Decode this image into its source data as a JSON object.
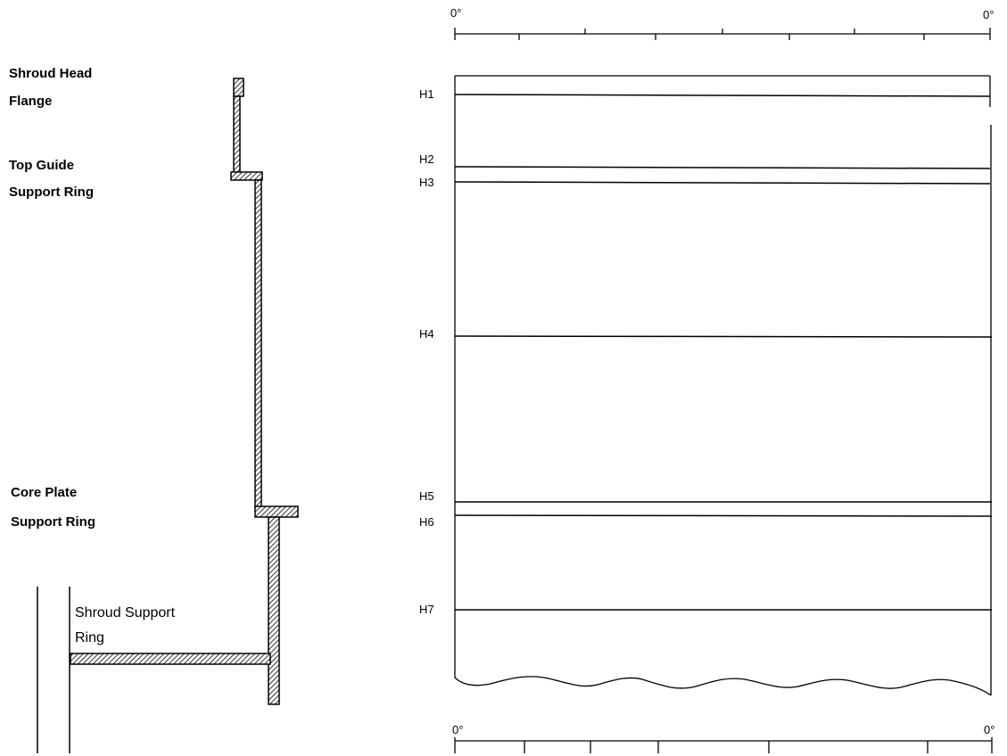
{
  "components": {
    "shroud_head_flange": [
      "Shroud Head",
      "Flange"
    ],
    "top_guide_support_ring": [
      "Top Guide",
      "Support Ring"
    ],
    "core_plate_support_ring": [
      "Core Plate",
      "Support Ring"
    ],
    "shroud_support_ring": [
      "Shroud Support",
      "Ring"
    ]
  },
  "welds": [
    "H1",
    "H2",
    "H3",
    "H4",
    "H5",
    "H6",
    "H7"
  ],
  "azimuth": {
    "top": {
      "start": "0°",
      "end": "0°"
    },
    "bottom": {
      "start": "0°",
      "end": "0°"
    }
  },
  "colors": {
    "line": "#000000",
    "background": "#ffffff"
  }
}
